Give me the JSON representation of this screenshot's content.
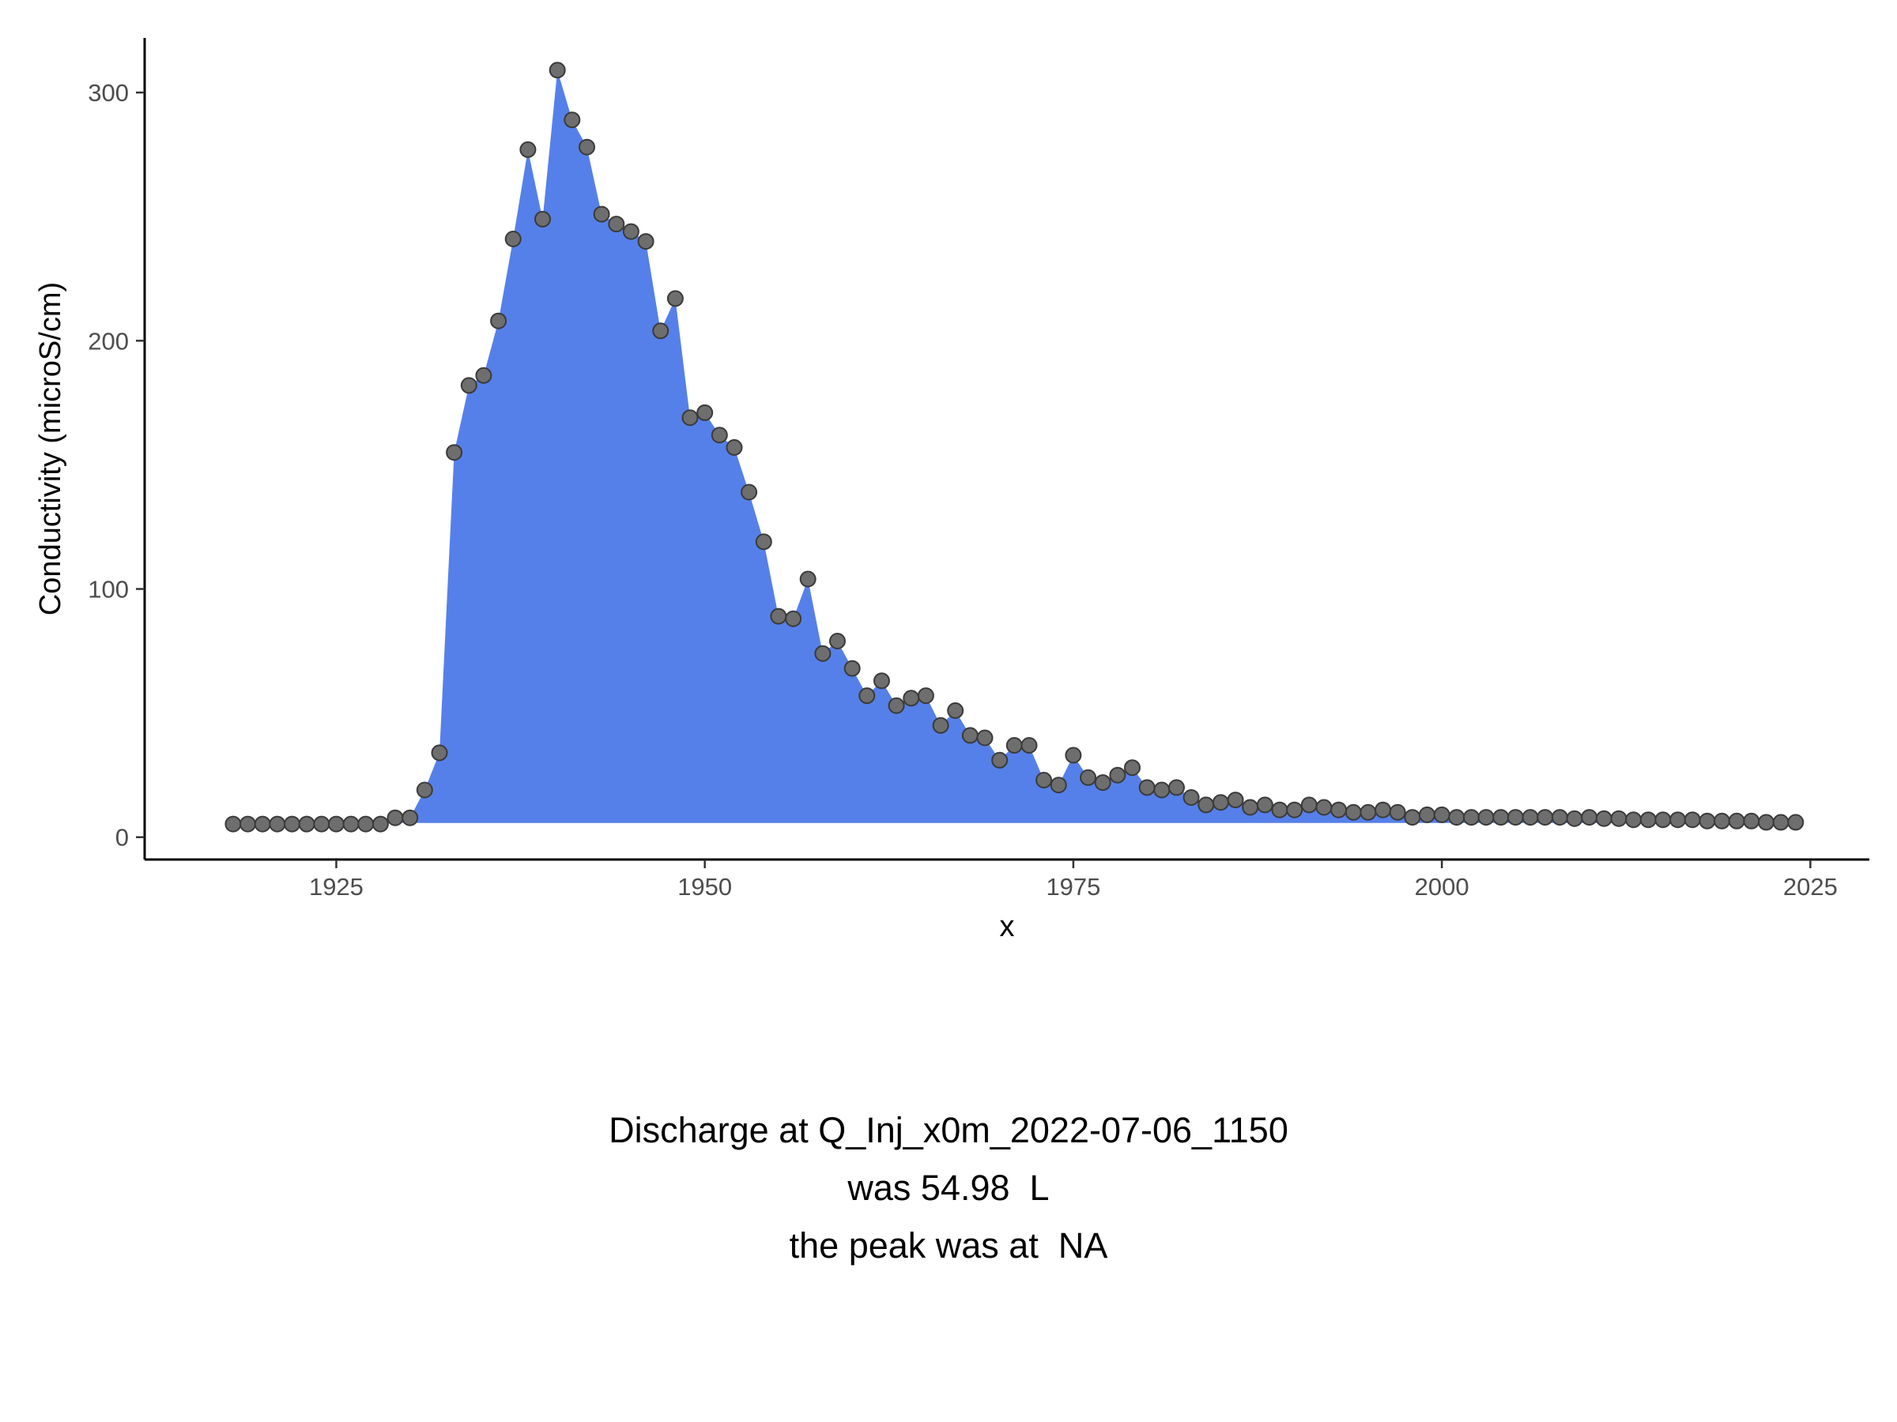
{
  "chart_data": {
    "type": "area",
    "xlabel": "x",
    "ylabel": "Conductivity (microS/cm)",
    "xlim": [
      1912,
      2029
    ],
    "ylim": [
      -9,
      322
    ],
    "x_ticks": [
      1925,
      1950,
      1975,
      2000,
      2025
    ],
    "y_ticks": [
      0,
      100,
      200,
      300
    ],
    "baseline": 5.7,
    "grid": false,
    "legend": "none",
    "colors": {
      "area": "#5680E9",
      "points": "#6E6E6E",
      "point_outline": "#3A3A3A",
      "axis": "#000000"
    },
    "x": [
      1918,
      1919,
      1920,
      1921,
      1922,
      1923,
      1924,
      1925,
      1926,
      1927,
      1928,
      1929,
      1930,
      1931,
      1932,
      1933,
      1934,
      1935,
      1936,
      1937,
      1938,
      1939,
      1940,
      1941,
      1942,
      1943,
      1944,
      1945,
      1946,
      1947,
      1948,
      1949,
      1950,
      1951,
      1952,
      1953,
      1954,
      1955,
      1956,
      1957,
      1958,
      1959,
      1960,
      1961,
      1962,
      1963,
      1964,
      1965,
      1966,
      1967,
      1968,
      1969,
      1970,
      1971,
      1972,
      1973,
      1974,
      1975,
      1976,
      1977,
      1978,
      1979,
      1980,
      1981,
      1982,
      1983,
      1984,
      1985,
      1986,
      1987,
      1988,
      1989,
      1990,
      1991,
      1992,
      1993,
      1994,
      1995,
      1996,
      1997,
      1998,
      1999,
      2000,
      2001,
      2002,
      2003,
      2004,
      2005,
      2006,
      2007,
      2008,
      2009,
      2010,
      2011,
      2012,
      2013,
      2014,
      2015,
      2016,
      2017,
      2018,
      2019,
      2020,
      2021,
      2022,
      2023,
      2024
    ],
    "y": [
      5.3,
      5.3,
      5.3,
      5.3,
      5.3,
      5.3,
      5.3,
      5.3,
      5.3,
      5.3,
      5.3,
      7.8,
      7.8,
      19,
      34,
      155,
      182,
      186,
      208,
      241,
      277,
      249,
      309,
      289,
      278,
      251,
      247,
      244,
      240,
      204,
      217,
      169,
      171,
      162,
      157,
      139,
      119,
      89,
      88,
      104,
      74,
      79,
      68,
      57,
      63,
      53,
      56,
      57,
      45,
      51,
      41,
      40,
      31,
      37,
      37,
      23,
      21,
      33,
      24,
      22,
      25,
      28,
      20,
      19,
      20,
      16,
      13,
      14,
      15,
      12,
      13,
      11,
      11,
      13,
      12,
      11,
      10,
      10,
      11,
      10,
      8,
      9,
      9,
      8,
      8,
      8,
      8,
      8,
      8,
      8,
      8,
      7.5,
      8,
      7.5,
      7.5,
      7,
      7,
      7,
      7,
      7,
      6.5,
      6.5,
      6.5,
      6.5,
      6,
      6,
      6
    ]
  },
  "caption": {
    "line1": "Discharge at Q_Inj_x0m_2022-07-06_1150",
    "line2": "was 54.98  L",
    "line3": "the peak was at  NA"
  }
}
